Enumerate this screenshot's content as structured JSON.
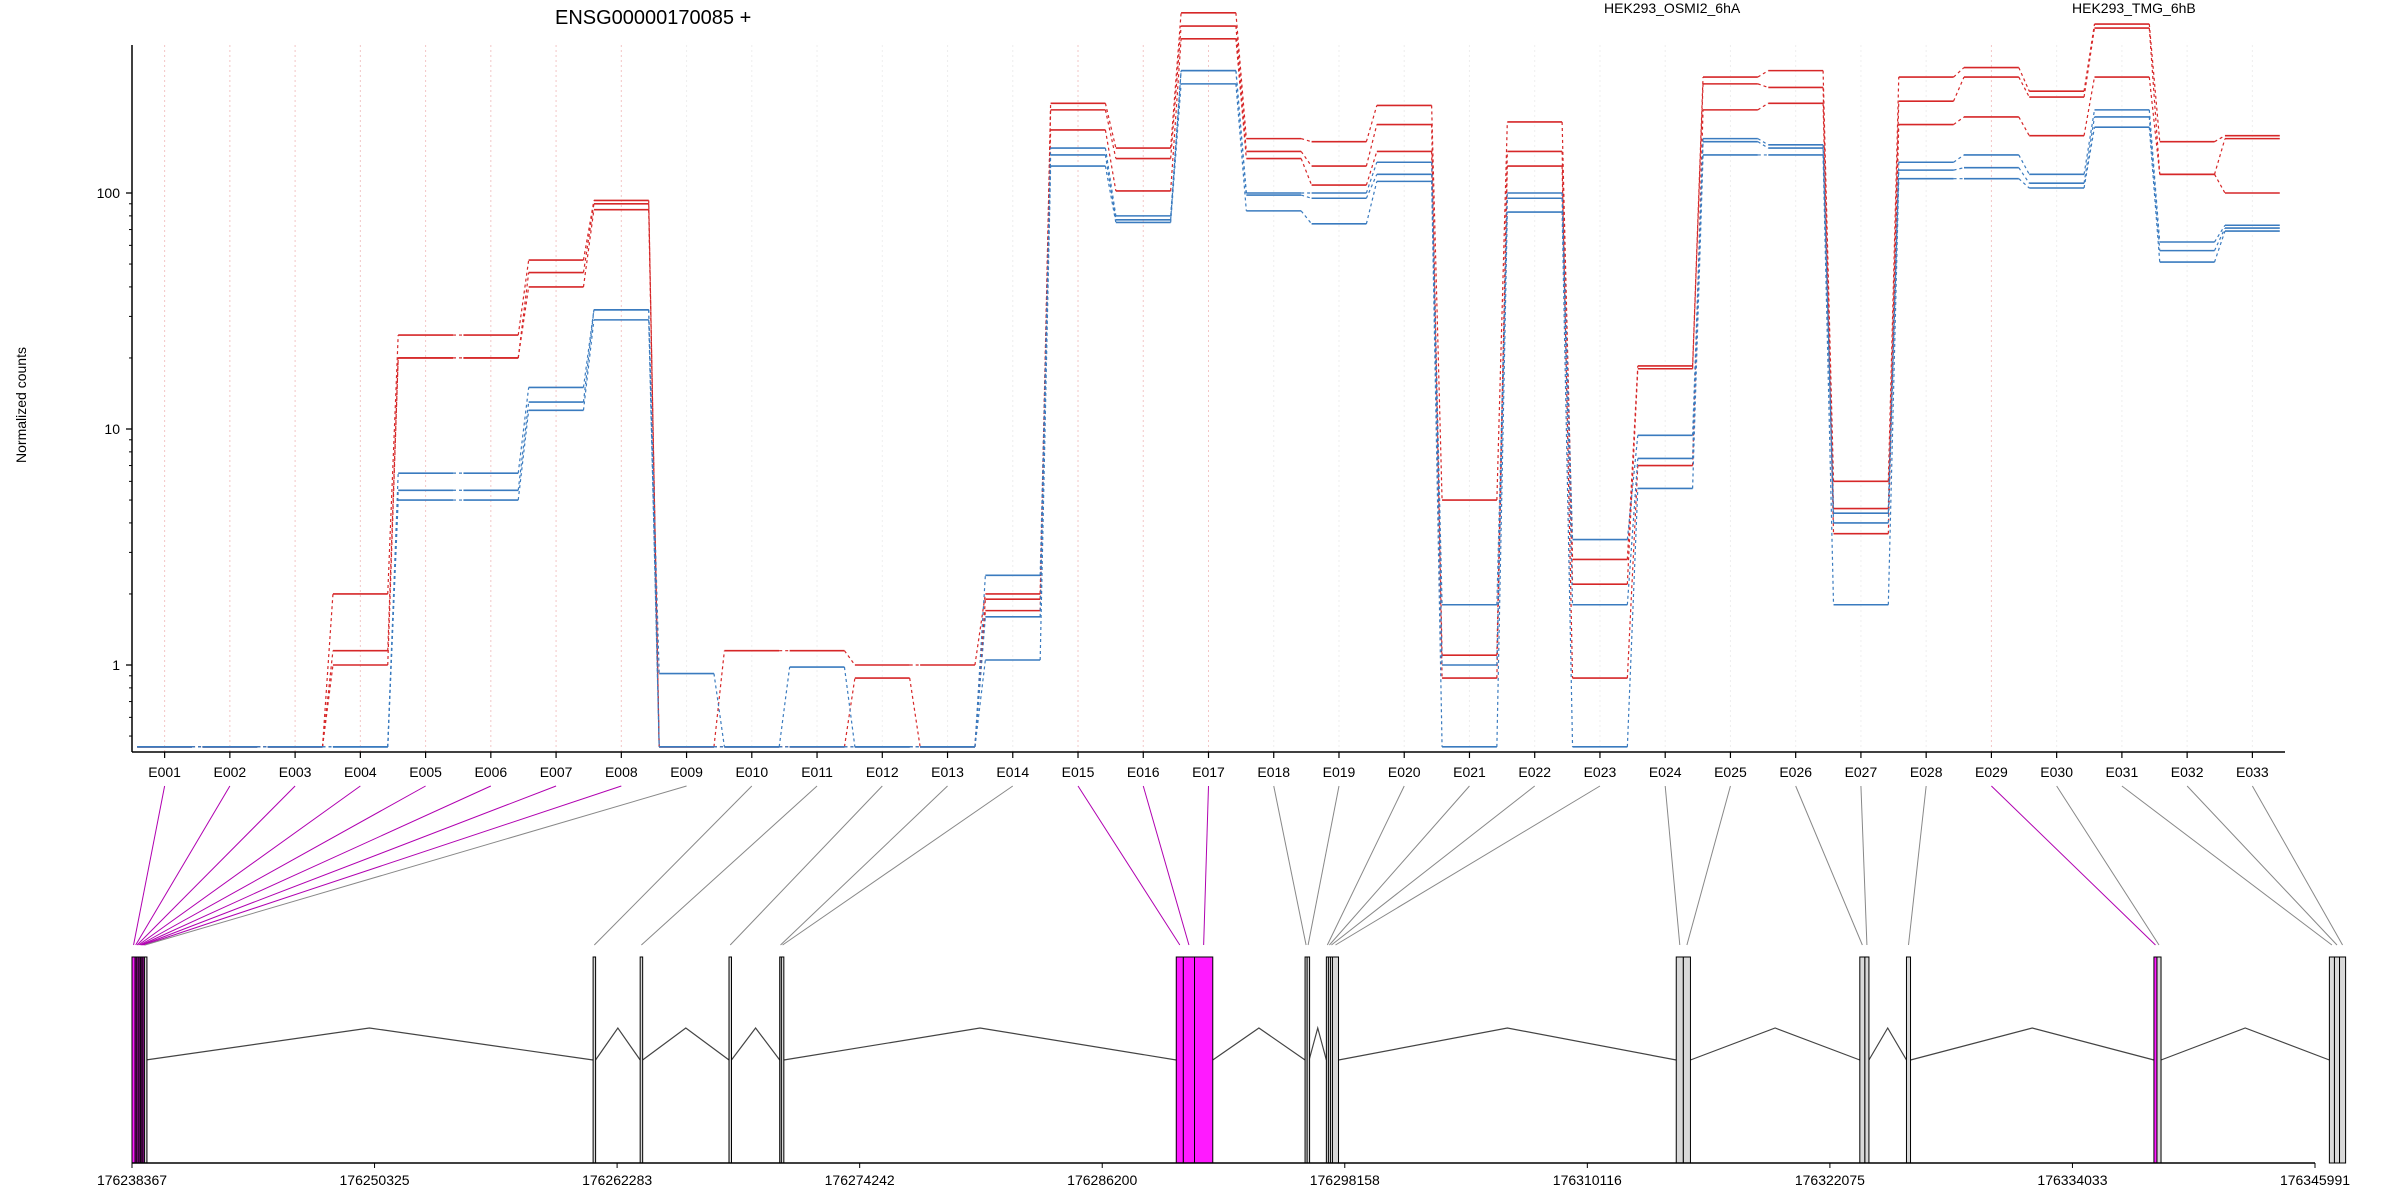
{
  "chart_data": {
    "type": "line",
    "title": "ENSG00000170085 +",
    "ylabel": "Normalized counts",
    "xlabel": "",
    "y_scale": "log",
    "y_ticks": [
      {
        "value": 1,
        "label": "1"
      },
      {
        "value": 10,
        "label": "10"
      },
      {
        "value": 100,
        "label": "100"
      }
    ],
    "categories": [
      "E001",
      "E002",
      "E003",
      "E004",
      "E005",
      "E006",
      "E007",
      "E008",
      "E009",
      "E010",
      "E011",
      "E012",
      "E013",
      "E014",
      "E015",
      "E016",
      "E017",
      "E018",
      "E019",
      "E020",
      "E021",
      "E022",
      "E023",
      "E024",
      "E025",
      "E026",
      "E027",
      "E028",
      "E029",
      "E030",
      "E031",
      "E032",
      "E033"
    ],
    "series": [
      {
        "name": "HEK293_OSMI2_6hA",
        "color": "#d62728",
        "values": [
          0.45,
          0.45,
          0.45,
          2.0,
          25,
          25,
          52,
          93,
          0.45,
          1.15,
          1.15,
          1.0,
          1.0,
          2.0,
          240,
          155,
          580,
          170,
          165,
          235,
          5.0,
          200,
          2.8,
          18.5,
          310,
          330,
          6.0,
          310,
          340,
          270,
          520,
          165,
          175
        ]
      },
      {
        "name": "HEK293_OSMI2_6hA",
        "color": "#d62728",
        "values": [
          0.45,
          0.45,
          0.45,
          1.15,
          20,
          20,
          46,
          90,
          0.45,
          0.45,
          0.45,
          0.88,
          0.45,
          1.9,
          225,
          140,
          510,
          150,
          130,
          195,
          1.1,
          150,
          2.2,
          18,
          290,
          280,
          4.6,
          245,
          310,
          255,
          500,
          120,
          170
        ]
      },
      {
        "name": "HEK293_OSMI2_6hA",
        "color": "#d62728",
        "values": [
          0.45,
          0.45,
          0.45,
          1.0,
          20,
          20,
          40,
          85,
          0.45,
          0.45,
          0.45,
          0.45,
          0.45,
          1.7,
          185,
          102,
          450,
          140,
          108,
          150,
          0.88,
          130,
          0.88,
          7.0,
          225,
          240,
          3.6,
          195,
          210,
          175,
          310,
          120,
          100
        ]
      },
      {
        "name": "HEK293_TMG_6hB",
        "color": "#3a7bbf",
        "values": [
          0.45,
          0.45,
          0.45,
          0.45,
          6.5,
          6.5,
          15,
          32,
          0.92,
          0.45,
          0.45,
          0.45,
          0.45,
          2.4,
          155,
          80,
          330,
          100,
          100,
          135,
          1.8,
          100,
          3.4,
          9.4,
          170,
          160,
          4.4,
          135,
          145,
          120,
          225,
          62,
          73
        ]
      },
      {
        "name": "HEK293_TMG_6hB",
        "color": "#3a7bbf",
        "values": [
          0.45,
          0.45,
          0.45,
          0.45,
          5.5,
          5.5,
          13,
          32,
          0.45,
          0.45,
          0.98,
          0.45,
          0.45,
          1.6,
          145,
          77,
          330,
          98,
          95,
          120,
          1.0,
          95,
          1.8,
          7.5,
          165,
          155,
          4.0,
          125,
          128,
          110,
          210,
          57,
          71
        ]
      },
      {
        "name": "HEK293_TMG_6hB",
        "color": "#3a7bbf",
        "values": [
          0.45,
          0.45,
          0.45,
          0.45,
          5.0,
          5.0,
          12,
          29,
          0.45,
          0.45,
          0.45,
          0.45,
          0.45,
          1.05,
          130,
          75,
          290,
          84,
          74,
          112,
          0.45,
          83,
          0.45,
          5.6,
          145,
          145,
          1.8,
          115,
          115,
          105,
          190,
          51,
          69
        ]
      }
    ],
    "legend": [
      {
        "label": "HEK293_OSMI2_6hA",
        "color": "#d62728"
      },
      {
        "label": "HEK293_TMG_6hB",
        "color": "#3a7bbf"
      }
    ],
    "gene_model": {
      "coordinate_labels": [
        "176238367",
        "176250325",
        "176262283",
        "176274242",
        "176286200",
        "176298158",
        "176310116",
        "176322075",
        "176334033",
        "176345991"
      ],
      "exons": [
        {
          "id": "E001",
          "start": 176238367,
          "end": 176238520,
          "highlight": true
        },
        {
          "id": "E002",
          "start": 176238520,
          "end": 176238580,
          "highlight": true
        },
        {
          "id": "E003",
          "start": 176238580,
          "end": 176238660,
          "highlight": true
        },
        {
          "id": "E004",
          "start": 176238660,
          "end": 176238720,
          "highlight": true
        },
        {
          "id": "E005",
          "start": 176238720,
          "end": 176238790,
          "highlight": true
        },
        {
          "id": "E006",
          "start": 176238790,
          "end": 176238850,
          "highlight": true
        },
        {
          "id": "E007",
          "start": 176238850,
          "end": 176238910,
          "highlight": true
        },
        {
          "id": "E008",
          "start": 176238910,
          "end": 176238980,
          "highlight": true
        },
        {
          "id": "E009",
          "start": 176238980,
          "end": 176239040,
          "highlight": false
        },
        {
          "id": "E010",
          "start": 176261100,
          "end": 176261220,
          "highlight": false
        },
        {
          "id": "E011",
          "start": 176263420,
          "end": 176263540,
          "highlight": false
        },
        {
          "id": "E012",
          "start": 176267800,
          "end": 176267920,
          "highlight": false
        },
        {
          "id": "E013",
          "start": 176270300,
          "end": 176270380,
          "highlight": false
        },
        {
          "id": "E014",
          "start": 176270380,
          "end": 176270500,
          "highlight": false
        },
        {
          "id": "E015",
          "start": 176289850,
          "end": 176290200,
          "highlight": true
        },
        {
          "id": "E016",
          "start": 176290200,
          "end": 176290750,
          "highlight": true
        },
        {
          "id": "E017",
          "start": 176290750,
          "end": 176291650,
          "highlight": true
        },
        {
          "id": "E018",
          "start": 176296200,
          "end": 176296300,
          "highlight": false
        },
        {
          "id": "E019",
          "start": 176296300,
          "end": 176296400,
          "highlight": false
        },
        {
          "id": "E020",
          "start": 176297250,
          "end": 176297350,
          "highlight": false
        },
        {
          "id": "E021",
          "start": 176297350,
          "end": 176297450,
          "highlight": false
        },
        {
          "id": "E022",
          "start": 176297450,
          "end": 176297550,
          "highlight": false
        },
        {
          "id": "E023",
          "start": 176297550,
          "end": 176297850,
          "highlight": false
        },
        {
          "id": "E024",
          "start": 176314500,
          "end": 176314850,
          "highlight": false
        },
        {
          "id": "E025",
          "start": 176314850,
          "end": 176315200,
          "highlight": false
        },
        {
          "id": "E026",
          "start": 176323550,
          "end": 176323800,
          "highlight": false
        },
        {
          "id": "E027",
          "start": 176323800,
          "end": 176324000,
          "highlight": false
        },
        {
          "id": "E028",
          "start": 176325850,
          "end": 176326050,
          "highlight": false
        },
        {
          "id": "E029",
          "start": 176338050,
          "end": 176338200,
          "highlight": true
        },
        {
          "id": "E030",
          "start": 176338200,
          "end": 176338400,
          "highlight": false
        },
        {
          "id": "E031",
          "start": 176346700,
          "end": 176346950,
          "highlight": false
        },
        {
          "id": "E032",
          "start": 176346950,
          "end": 176347200,
          "highlight": false
        },
        {
          "id": "E033",
          "start": 176347200,
          "end": 176347500,
          "highlight": false
        }
      ],
      "introns": [
        [
          176239040,
          176261100
        ],
        [
          176261220,
          176263420
        ],
        [
          176263540,
          176267800
        ],
        [
          176267920,
          176270300
        ],
        [
          176270500,
          176289850
        ],
        [
          176291650,
          176296200
        ],
        [
          176296400,
          176297250
        ],
        [
          176297850,
          176314500
        ],
        [
          176315200,
          176323550
        ],
        [
          176324000,
          176325850
        ],
        [
          176326050,
          176338050
        ],
        [
          176338400,
          176346700
        ]
      ]
    },
    "colors": {
      "osmi": "#d62728",
      "tmg": "#3a7bbf",
      "highlight_exon": "#ff1aff",
      "exon": "#d9d9d9",
      "connector": "#888888",
      "highlight_connector": "#b000b0"
    },
    "grid": false
  }
}
